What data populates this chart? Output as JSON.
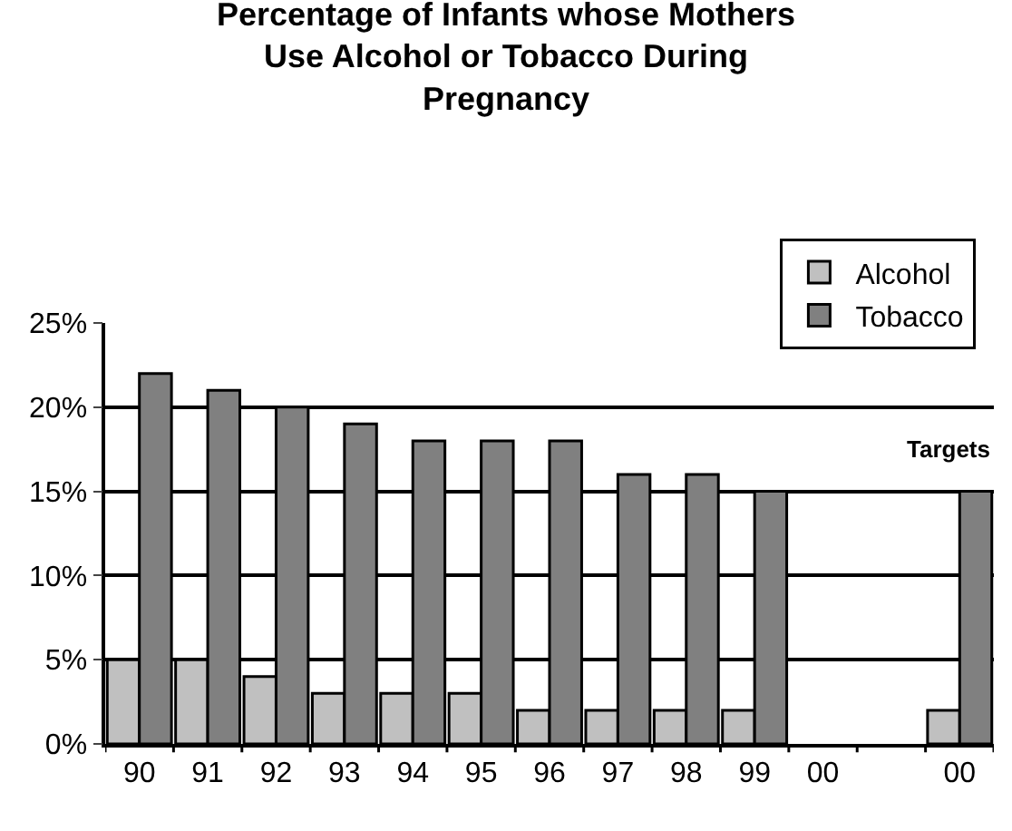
{
  "chart_data": {
    "type": "bar",
    "title": "Percentage of Infants whose Mothers\nUse Alcohol or Tobacco During\nPregnancy",
    "categories": [
      "90",
      "91",
      "92",
      "93",
      "94",
      "95",
      "96",
      "97",
      "98",
      "99",
      "00",
      null,
      "00"
    ],
    "series": [
      {
        "name": "Alcohol",
        "color": "#c0c0c0",
        "values": [
          5,
          5,
          4,
          3,
          3,
          3,
          2,
          2,
          2,
          2,
          null,
          null,
          2
        ]
      },
      {
        "name": "Tobacco",
        "color": "#808080",
        "values": [
          22,
          21,
          20,
          19,
          18,
          18,
          18,
          16,
          16,
          15,
          null,
          null,
          15
        ]
      }
    ],
    "ylim": [
      0,
      25
    ],
    "yticks": [
      {
        "value": 0,
        "label": "0%"
      },
      {
        "value": 5,
        "label": "5%"
      },
      {
        "value": 10,
        "label": "10%"
      },
      {
        "value": 15,
        "label": "15%"
      },
      {
        "value": 20,
        "label": "20%"
      },
      {
        "value": 25,
        "label": "25%"
      }
    ],
    "annotations": [
      "Targets"
    ],
    "grid": "y",
    "legend": "top right"
  }
}
